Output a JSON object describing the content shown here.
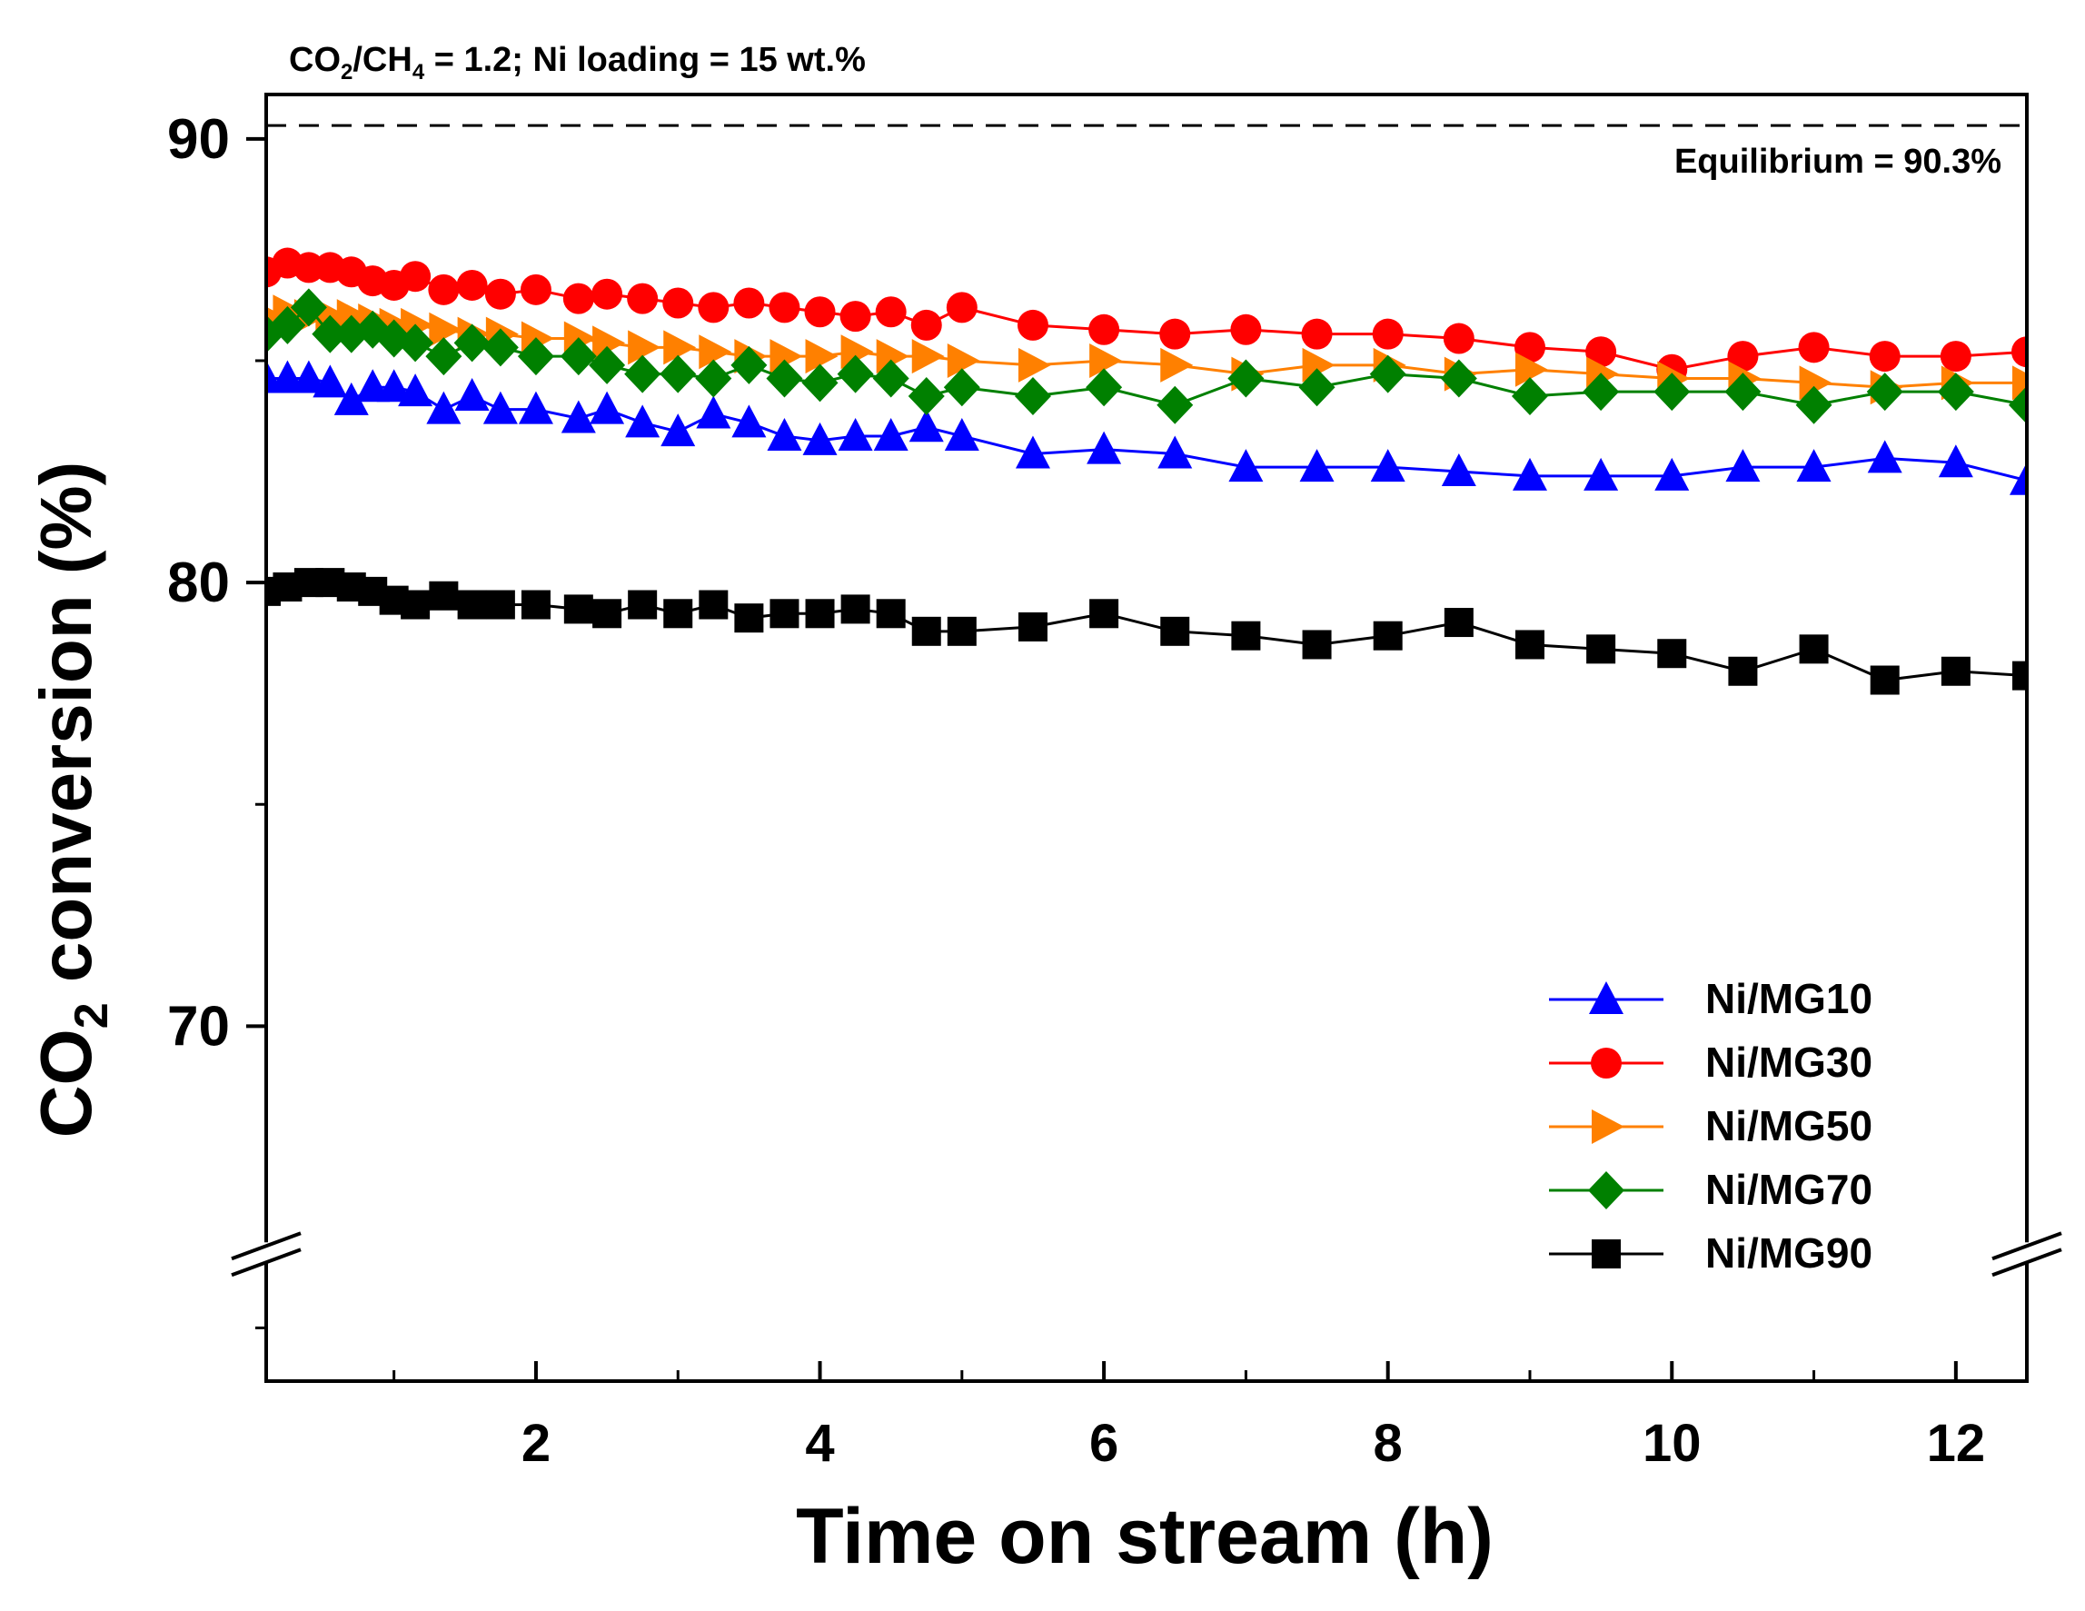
{
  "chart_data": {
    "type": "line",
    "title": "CO2/CH4 = 1.2; Ni loading = 15 wt.%",
    "title_parts": {
      "a": "CO",
      "a_sub": "2",
      "b": "/CH",
      "b_sub": "4",
      "c": " = 1.2; Ni loading = 15 wt.%"
    },
    "xlabel": "Time on stream (h)",
    "ylabel": "CO2 conversion (%)",
    "ylabel_parts": {
      "a": "CO",
      "a_sub": "2",
      "b": " conversion (%)"
    },
    "xlim": [
      0.1,
      12.5
    ],
    "ylim": [
      62,
      91
    ],
    "axis_break_y": 64.8,
    "x_ticks": [
      2,
      4,
      6,
      8,
      10,
      12
    ],
    "x_tick_labels": [
      "2",
      "4",
      "6",
      "8",
      "10",
      "12"
    ],
    "x_minor_ticks": [
      1,
      3,
      5,
      7,
      9,
      11
    ],
    "y_ticks": [
      70,
      80,
      90
    ],
    "y_tick_labels": [
      "70",
      "80",
      "90"
    ],
    "y_minor_ticks": [
      63.2,
      75,
      85
    ],
    "equilibrium": {
      "value": 90.3,
      "label": "Equilibrium = 90.3%"
    },
    "legend_position": "bottom-right",
    "series": [
      {
        "name": "Ni/MG10",
        "color": "#0000ff",
        "marker": "triangle-up",
        "x": [
          0.1,
          0.25,
          0.4,
          0.55,
          0.7,
          0.85,
          1.0,
          1.15,
          1.35,
          1.55,
          1.75,
          2.0,
          2.3,
          2.5,
          2.75,
          3.0,
          3.25,
          3.5,
          3.75,
          4.0,
          4.25,
          4.5,
          4.75,
          5.0,
          5.5,
          6.0,
          6.5,
          7.0,
          7.5,
          8.0,
          8.5,
          9.0,
          9.5,
          10.0,
          10.5,
          11.0,
          11.5,
          12.0,
          12.5
        ],
        "values": [
          84.6,
          84.6,
          84.6,
          84.5,
          84.1,
          84.4,
          84.4,
          84.3,
          83.9,
          84.2,
          83.9,
          83.9,
          83.7,
          83.9,
          83.6,
          83.4,
          83.8,
          83.6,
          83.3,
          83.2,
          83.3,
          83.3,
          83.5,
          83.3,
          82.9,
          83.0,
          82.9,
          82.6,
          82.6,
          82.6,
          82.5,
          82.4,
          82.4,
          82.4,
          82.6,
          82.6,
          82.8,
          82.7,
          82.3
        ]
      },
      {
        "name": "Ni/MG30",
        "color": "#ff0000",
        "marker": "circle",
        "x": [
          0.1,
          0.25,
          0.4,
          0.55,
          0.7,
          0.85,
          1.0,
          1.15,
          1.35,
          1.55,
          1.75,
          2.0,
          2.3,
          2.5,
          2.75,
          3.0,
          3.25,
          3.5,
          3.75,
          4.0,
          4.25,
          4.5,
          4.75,
          5.0,
          5.5,
          6.0,
          6.5,
          7.0,
          7.5,
          8.0,
          8.5,
          9.0,
          9.5,
          10.0,
          10.5,
          11.0,
          11.5,
          12.0,
          12.5
        ],
        "values": [
          87.0,
          87.2,
          87.1,
          87.1,
          87.0,
          86.8,
          86.7,
          86.9,
          86.6,
          86.7,
          86.5,
          86.6,
          86.4,
          86.5,
          86.4,
          86.3,
          86.2,
          86.3,
          86.2,
          86.1,
          86.0,
          86.1,
          85.8,
          86.2,
          85.8,
          85.7,
          85.6,
          85.7,
          85.6,
          85.6,
          85.5,
          85.3,
          85.2,
          84.8,
          85.1,
          85.3,
          85.1,
          85.1,
          85.2
        ]
      },
      {
        "name": "Ni/MG50",
        "color": "#ff8000",
        "marker": "triangle-right",
        "x": [
          0.1,
          0.25,
          0.4,
          0.55,
          0.7,
          0.85,
          1.0,
          1.15,
          1.35,
          1.55,
          1.75,
          2.0,
          2.3,
          2.5,
          2.75,
          3.0,
          3.25,
          3.5,
          3.75,
          4.0,
          4.25,
          4.5,
          4.75,
          5.0,
          5.5,
          6.0,
          6.5,
          7.0,
          7.5,
          8.0,
          8.5,
          9.0,
          9.5,
          10.0,
          10.5,
          11.0,
          11.5,
          12.0,
          12.5
        ],
        "values": [
          86.0,
          86.1,
          86.0,
          86.0,
          86.0,
          85.9,
          85.8,
          85.8,
          85.7,
          85.6,
          85.6,
          85.5,
          85.5,
          85.4,
          85.3,
          85.3,
          85.2,
          85.1,
          85.1,
          85.1,
          85.2,
          85.1,
          85.1,
          85.0,
          84.9,
          85.0,
          84.9,
          84.7,
          84.9,
          84.9,
          84.7,
          84.8,
          84.7,
          84.6,
          84.6,
          84.5,
          84.4,
          84.5,
          84.5
        ]
      },
      {
        "name": "Ni/MG70",
        "color": "#008000",
        "marker": "diamond",
        "x": [
          0.1,
          0.25,
          0.4,
          0.55,
          0.7,
          0.85,
          1.0,
          1.15,
          1.35,
          1.55,
          1.75,
          2.0,
          2.3,
          2.5,
          2.75,
          3.0,
          3.25,
          3.5,
          3.75,
          4.0,
          4.25,
          4.5,
          4.75,
          5.0,
          5.5,
          6.0,
          6.5,
          7.0,
          7.5,
          8.0,
          8.5,
          9.0,
          9.5,
          10.0,
          10.5,
          11.0,
          11.5,
          12.0,
          12.5
        ],
        "values": [
          85.6,
          85.8,
          86.2,
          85.6,
          85.6,
          85.7,
          85.5,
          85.4,
          85.1,
          85.4,
          85.3,
          85.1,
          85.1,
          84.9,
          84.7,
          84.7,
          84.6,
          84.9,
          84.6,
          84.5,
          84.7,
          84.6,
          84.2,
          84.4,
          84.2,
          84.4,
          84.0,
          84.6,
          84.4,
          84.7,
          84.6,
          84.2,
          84.3,
          84.3,
          84.3,
          84.0,
          84.3,
          84.3,
          84.0
        ]
      },
      {
        "name": "Ni/MG90",
        "color": "#000000",
        "marker": "square",
        "x": [
          0.1,
          0.25,
          0.4,
          0.55,
          0.7,
          0.85,
          1.0,
          1.15,
          1.35,
          1.55,
          1.75,
          2.0,
          2.3,
          2.5,
          2.75,
          3.0,
          3.25,
          3.5,
          3.75,
          4.0,
          4.25,
          4.5,
          4.75,
          5.0,
          5.5,
          6.0,
          6.5,
          7.0,
          7.5,
          8.0,
          8.5,
          9.0,
          9.5,
          10.0,
          10.5,
          11.0,
          11.5,
          12.0,
          12.5
        ],
        "values": [
          79.8,
          79.9,
          80.0,
          80.0,
          79.9,
          79.8,
          79.6,
          79.5,
          79.7,
          79.5,
          79.5,
          79.5,
          79.4,
          79.3,
          79.5,
          79.3,
          79.5,
          79.2,
          79.3,
          79.3,
          79.4,
          79.3,
          78.9,
          78.9,
          79.0,
          79.3,
          78.9,
          78.8,
          78.6,
          78.8,
          79.1,
          78.6,
          78.5,
          78.4,
          78.0,
          78.5,
          77.8,
          78.0,
          77.9
        ]
      }
    ]
  }
}
